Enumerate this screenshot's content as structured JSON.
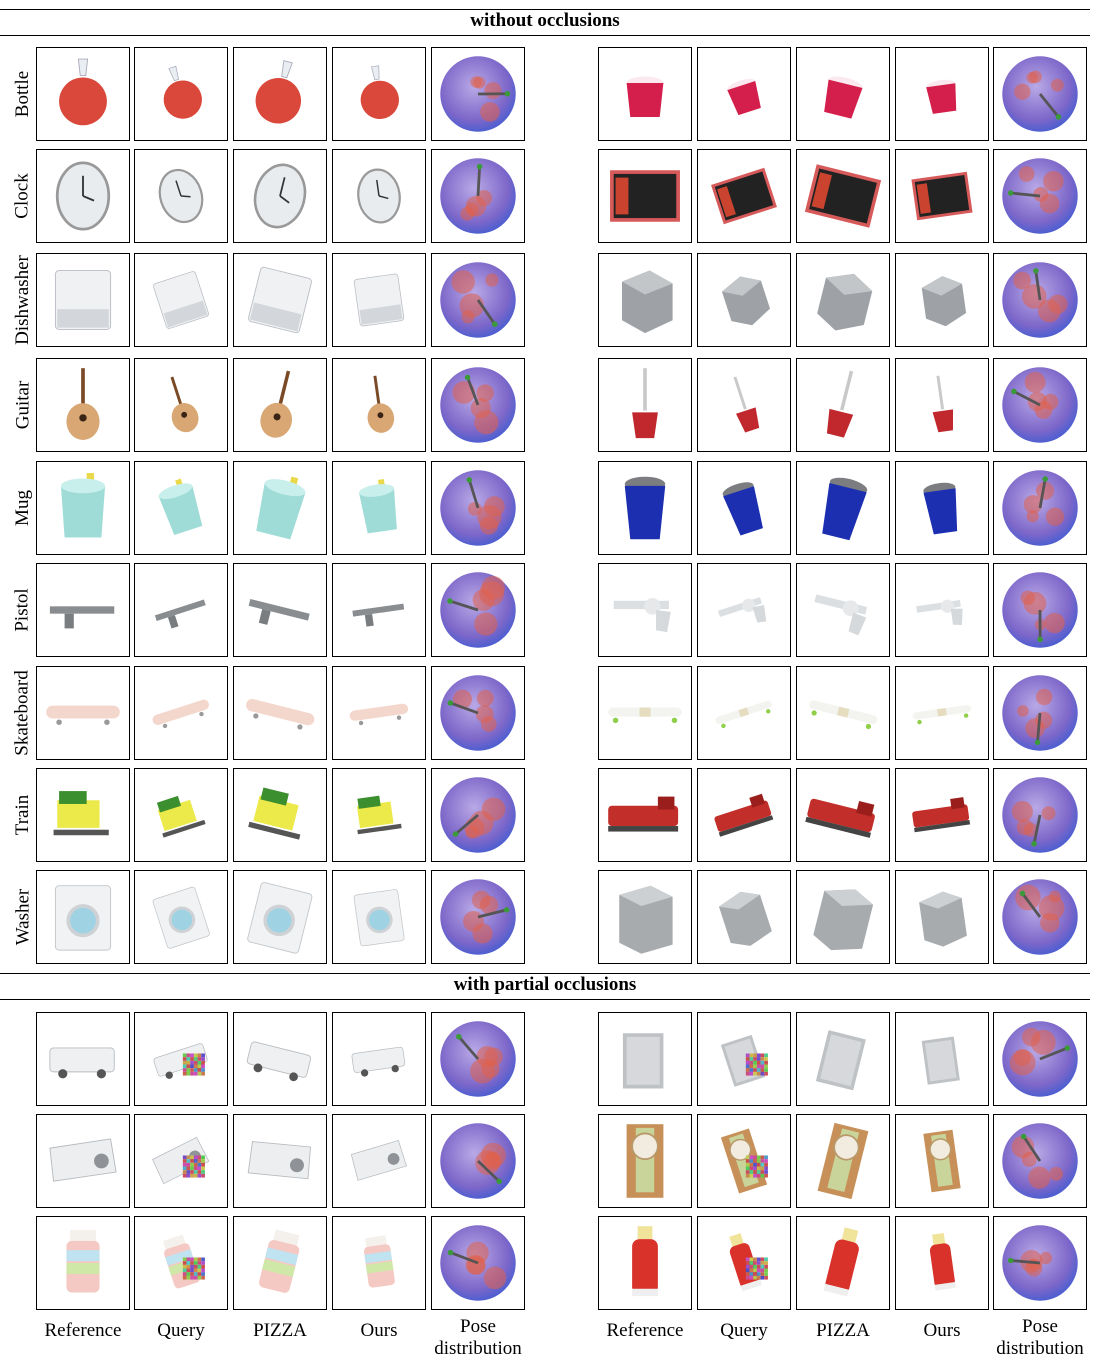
{
  "sections": [
    {
      "title": "without occlusions"
    },
    {
      "title": "with partial occlusions"
    }
  ],
  "row_labels": [
    "Bottle",
    "Clock",
    "Dishwasher",
    "Guitar",
    "Mug",
    "Pistol",
    "Skateboard",
    "Train",
    "Washer"
  ],
  "column_labels_left": [
    "Reference",
    "Query",
    "PIZZA",
    "Ours",
    "Pose\ndistribution"
  ],
  "column_labels_right": [
    "Reference",
    "Query",
    "PIZZA",
    "Ours",
    "Pose\ndistribution"
  ],
  "thumbnails": {
    "Bottle": [
      "red-vase",
      "red-cup"
    ],
    "Clock": [
      "wall-clock",
      "book-clock"
    ],
    "Dishwasher": [
      "white-appliance",
      "gray-box"
    ],
    "Guitar": [
      "acoustic-guitar",
      "electric-guitar"
    ],
    "Mug": [
      "teal-mug",
      "blue-travel-mug"
    ],
    "Pistol": [
      "gray-rifle",
      "white-revolver"
    ],
    "Skateboard": [
      "pink-skateboard",
      "white-longboard"
    ],
    "Train": [
      "yellow-toy-train",
      "red-locomotive"
    ],
    "Washer": [
      "white-washer",
      "gray-washer"
    ],
    "occluded": [
      [
        "white-van",
        "gray-cabinet"
      ],
      [
        "white-radio",
        "wooden-clock"
      ],
      [
        "jar",
        "red-bottle"
      ]
    ]
  },
  "colors": {
    "sphere_purple": "#7d67c9",
    "sphere_rim": "#4f5fd0",
    "heat_red": "#e0604a",
    "arrow_green": "#3a9a3a"
  }
}
